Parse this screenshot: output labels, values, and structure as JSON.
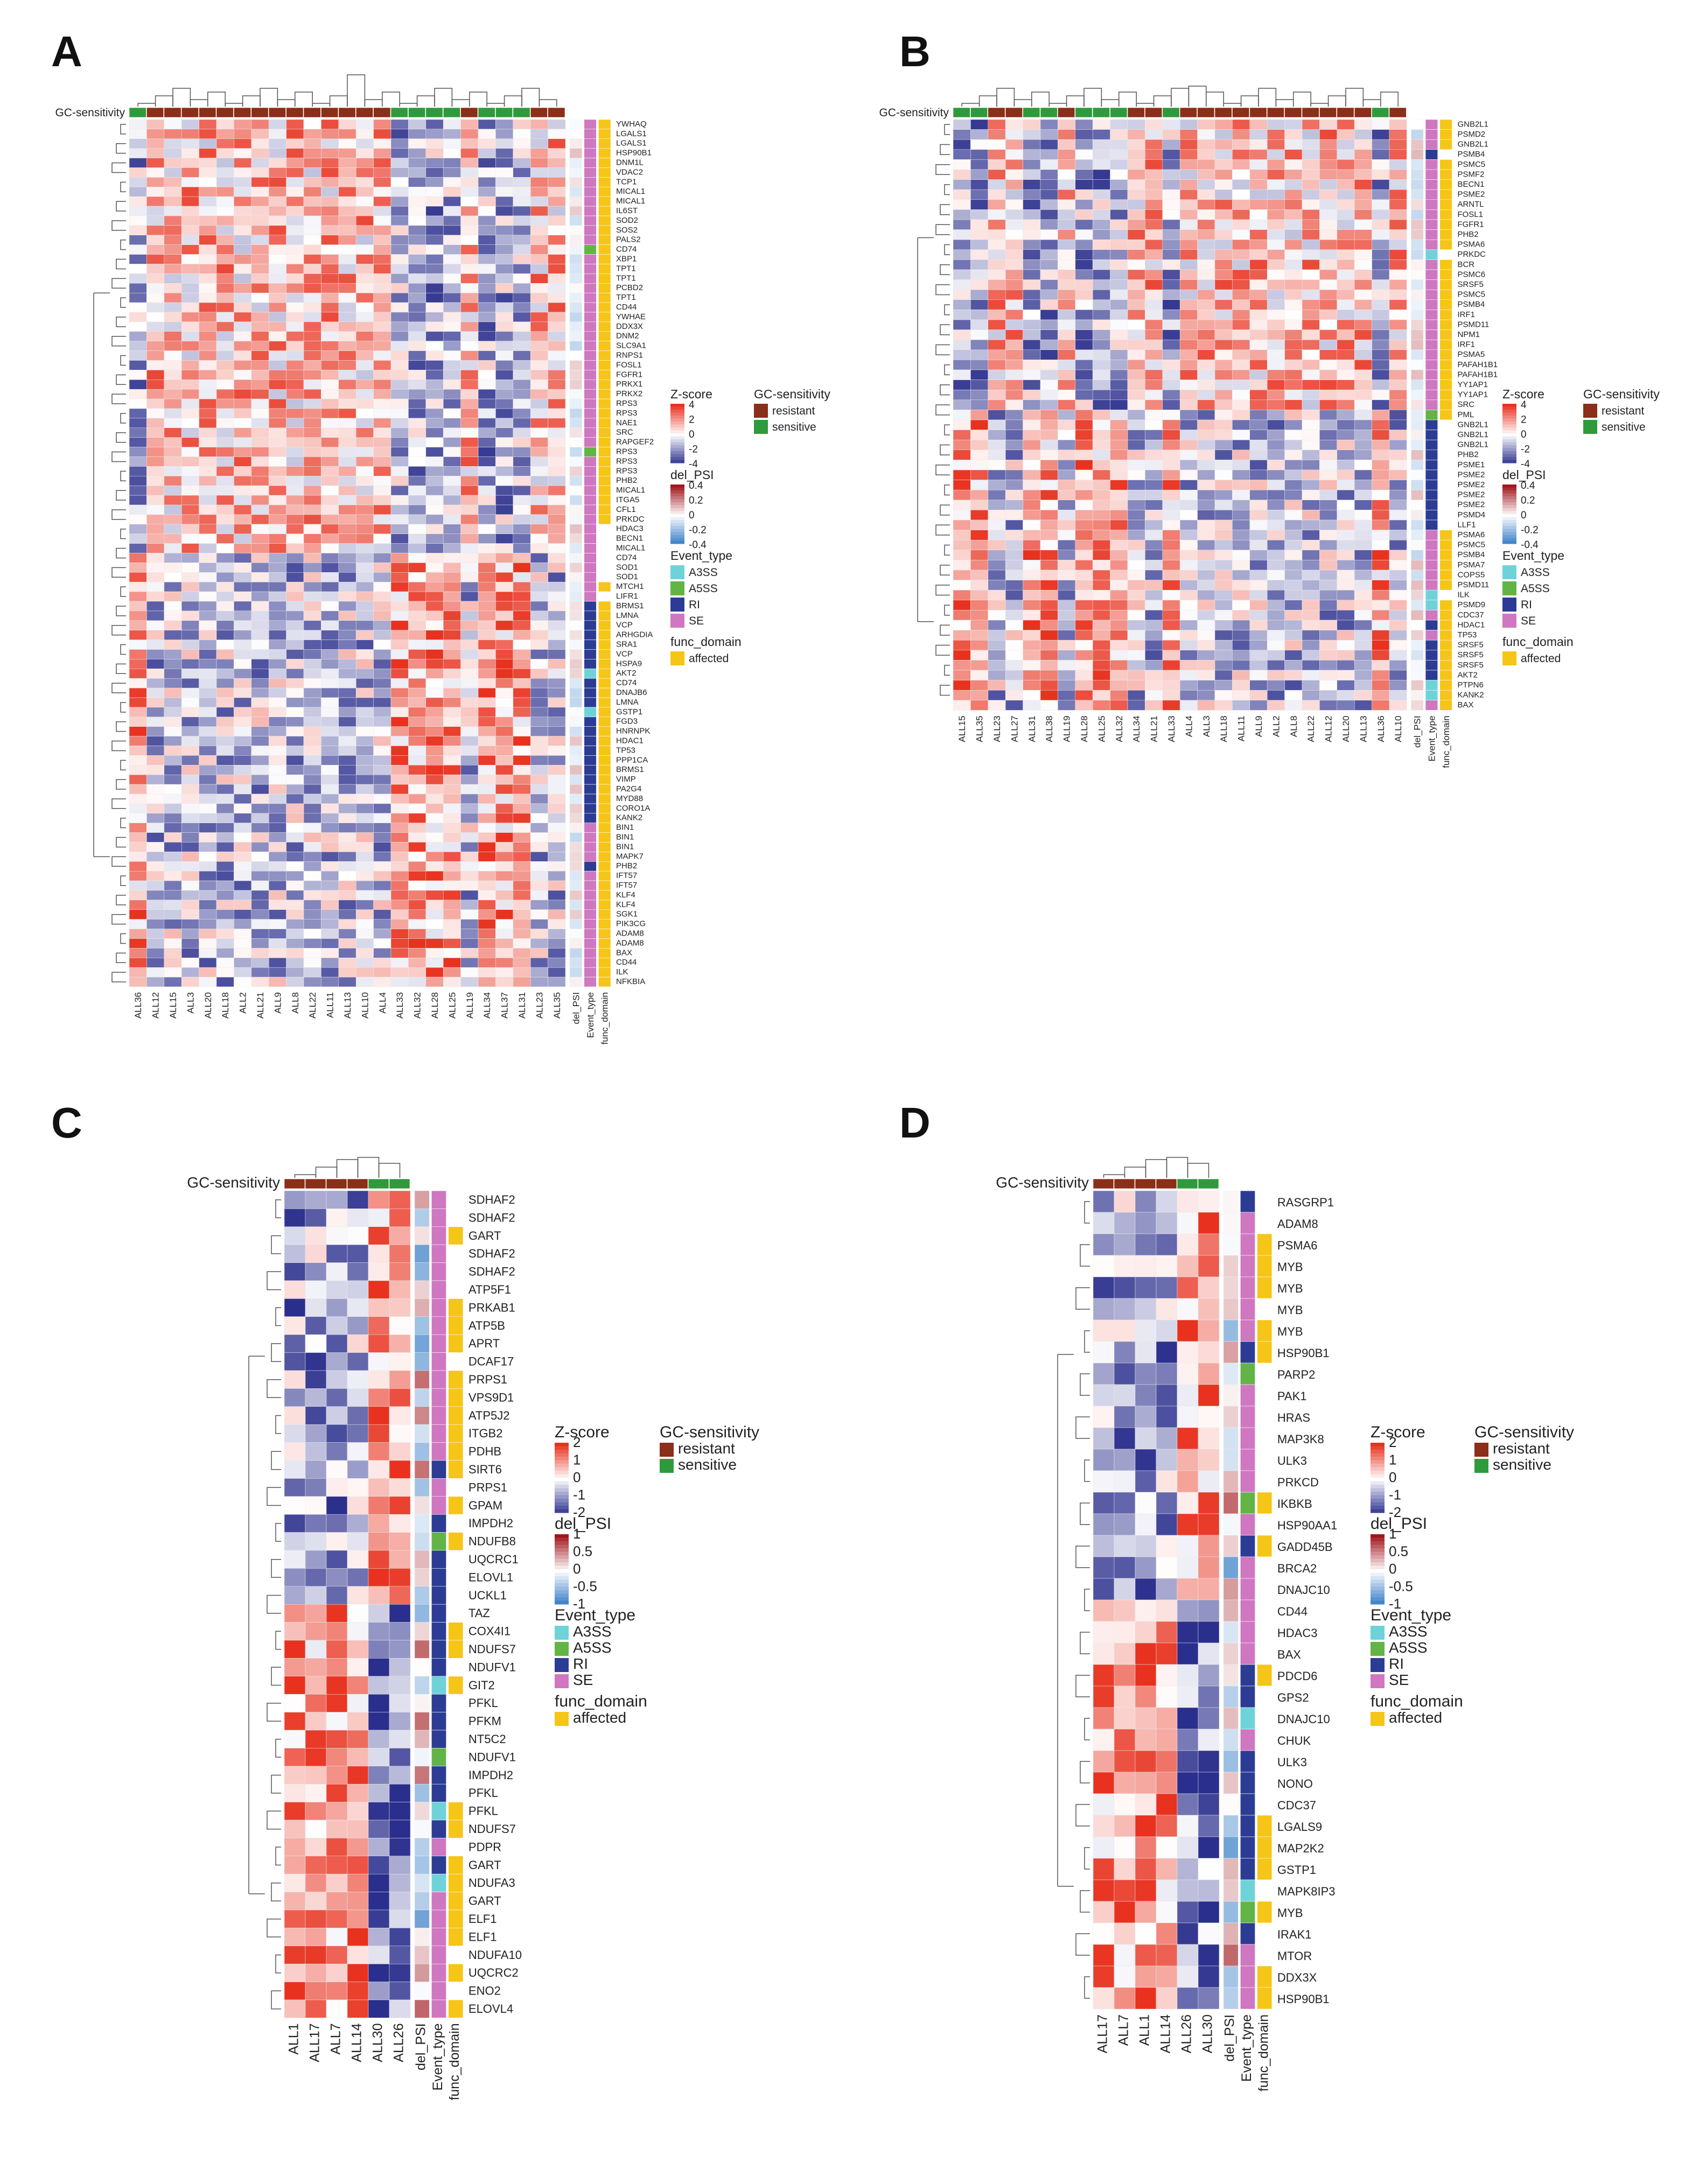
{
  "colors": {
    "resistant": "#8b2e1a",
    "sensitive": "#2f9a3c",
    "zscore_high": "#e8321f",
    "zscore_mid": "#ffffff",
    "zscore_low": "#2a2e8c",
    "delpsi_high": "#a0171c",
    "delpsi_low": "#2f78c4",
    "A3SS": "#6ed3d8",
    "A5SS": "#62b446",
    "RI": "#2c3c94",
    "SE": "#cf77c0",
    "affected": "#f5c518"
  },
  "legend": {
    "zscore_title": "Z-score",
    "delpsi_title": "del_PSI",
    "event_title": "Event_type",
    "func_title": "func_domain",
    "gc_title": "GC-sensitivity",
    "gc_items": [
      "resistant",
      "sensitive"
    ],
    "event_items": [
      "A3SS",
      "A5SS",
      "RI",
      "SE"
    ],
    "func_items": [
      "affected"
    ]
  },
  "chart_data": [
    {
      "panel": "A",
      "type": "heatmap",
      "row_label": "GC-sensitivity",
      "extra_columns": [
        "del_PSI",
        "Event_type",
        "func_domain"
      ],
      "zscore_ticks": [
        "4",
        "2",
        "0",
        "-2",
        "-4"
      ],
      "delpsi_ticks": [
        "0.4",
        "0.2",
        "0",
        "-0.2",
        "-0.4"
      ],
      "samples": [
        "ALL36",
        "ALL12",
        "ALL15",
        "ALL3",
        "ALL20",
        "ALL18",
        "ALL2",
        "ALL21",
        "ALL9",
        "ALL8",
        "ALL22",
        "ALL11",
        "ALL13",
        "ALL10",
        "ALL4",
        "ALL33",
        "ALL32",
        "ALL28",
        "ALL25",
        "ALL19",
        "ALL34",
        "ALL37",
        "ALL31",
        "ALL23",
        "ALL35"
      ],
      "gc_sensitivity": [
        "sensitive",
        "resistant",
        "resistant",
        "resistant",
        "resistant",
        "resistant",
        "resistant",
        "resistant",
        "resistant",
        "resistant",
        "resistant",
        "resistant",
        "resistant",
        "resistant",
        "resistant",
        "sensitive",
        "sensitive",
        "sensitive",
        "sensitive",
        "resistant",
        "sensitive",
        "sensitive",
        "sensitive",
        "resistant",
        "resistant"
      ],
      "genes": [
        "YWHAQ",
        "LGALS1",
        "LGALS1",
        "HSP90B1",
        "DNM1L",
        "VDAC2",
        "TCP1",
        "MICAL1",
        "MICAL1",
        "IL6ST",
        "SOD2",
        "SOS2",
        "PALS2",
        "CD74",
        "XBP1",
        "TPT1",
        "TPT1",
        "PCBD2",
        "TPT1",
        "CD44",
        "YWHAE",
        "DDX3X",
        "DNM2",
        "SLC9A1",
        "RNPS1",
        "FOSL1",
        "FGFR1",
        "PRKX1",
        "PRKX2",
        "RPS3",
        "RPS3",
        "NAE1",
        "SRC",
        "RAPGEF2",
        "RPS3",
        "RPS3",
        "RPS3",
        "PHB2",
        "MICAL1",
        "ITGA5",
        "CFL1",
        "PRKDC",
        "HDAC3",
        "BECN1",
        "MICAL1",
        "CD74",
        "SOD1",
        "SOD1",
        "MTCH1",
        "LIFR1",
        "BRMS1",
        "LMNA",
        "VCP",
        "ARHGDIA",
        "SRA1",
        "VCP",
        "HSPA9",
        "AKT2",
        "CD74",
        "DNAJB6",
        "LMNA",
        "GSTP1",
        "FGD3",
        "HNRNPK",
        "HDAC1",
        "TP53",
        "PPP1CA",
        "BRMS1",
        "VIMP",
        "PA2G4",
        "MYD88",
        "CORO1A",
        "KANK2",
        "BIN1",
        "BIN1",
        "BIN1",
        "MAPK7",
        "PHB2",
        "IFT57",
        "IFT57",
        "KLF4",
        "KLF4",
        "SGK1",
        "PIK3CG",
        "ADAM8",
        "ADAM8",
        "BAX",
        "CD44",
        "ILK",
        "NFKBIA"
      ],
      "event_type": [
        "SE",
        "SE",
        "SE",
        "SE",
        "SE",
        "SE",
        "SE",
        "SE",
        "SE",
        "SE",
        "SE",
        "SE",
        "SE",
        "A5SS",
        "SE",
        "SE",
        "SE",
        "SE",
        "SE",
        "SE",
        "SE",
        "SE",
        "SE",
        "SE",
        "SE",
        "SE",
        "SE",
        "SE",
        "SE",
        "SE",
        "SE",
        "SE",
        "SE",
        "SE",
        "A5SS",
        "SE",
        "SE",
        "SE",
        "SE",
        "SE",
        "SE",
        "SE",
        "SE",
        "SE",
        "SE",
        "SE",
        "SE",
        "SE",
        "SE",
        "SE",
        "RI",
        "RI",
        "RI",
        "RI",
        "RI",
        "RI",
        "RI",
        "A3SS",
        "RI",
        "RI",
        "RI",
        "A3SS",
        "RI",
        "RI",
        "RI",
        "RI",
        "RI",
        "RI",
        "RI",
        "RI",
        "RI",
        "RI",
        "RI",
        "SE",
        "SE",
        "SE",
        "SE",
        "RI",
        "SE",
        "SE",
        "SE",
        "SE",
        "SE",
        "SE",
        "SE",
        "SE",
        "SE",
        "SE",
        "SE",
        "SE"
      ],
      "func_affected": [
        true,
        true,
        true,
        true,
        true,
        true,
        true,
        true,
        true,
        true,
        true,
        true,
        true,
        true,
        true,
        true,
        true,
        true,
        true,
        true,
        true,
        true,
        true,
        true,
        true,
        true,
        true,
        true,
        true,
        true,
        true,
        true,
        true,
        true,
        true,
        true,
        true,
        true,
        true,
        true,
        true,
        true,
        false,
        false,
        false,
        false,
        false,
        false,
        true,
        false,
        true,
        true,
        true,
        true,
        true,
        true,
        true,
        true,
        true,
        true,
        true,
        true,
        true,
        true,
        true,
        true,
        true,
        true,
        true,
        true,
        true,
        true,
        true,
        true,
        true,
        true,
        true,
        true,
        true,
        true,
        true,
        true,
        true,
        true,
        true,
        true,
        true,
        true,
        true,
        true
      ]
    },
    {
      "panel": "B",
      "type": "heatmap",
      "row_label": "GC-sensitivity",
      "extra_columns": [
        "del_PSI",
        "Event_type",
        "func_domain"
      ],
      "zscore_ticks": [
        "4",
        "2",
        "0",
        "-2",
        "-4"
      ],
      "delpsi_ticks": [
        "0.4",
        "0.2",
        "0",
        "-0.2",
        "-0.4"
      ],
      "samples": [
        "ALL15",
        "ALL35",
        "ALL23",
        "ALL27",
        "ALL31",
        "ALL38",
        "ALL19",
        "ALL28",
        "ALL25",
        "ALL32",
        "ALL34",
        "ALL21",
        "ALL33",
        "ALL4",
        "ALL3",
        "ALL18",
        "ALL11",
        "ALL9",
        "ALL2",
        "ALL8",
        "ALL22",
        "ALL12",
        "ALL20",
        "ALL13",
        "ALL36",
        "ALL10"
      ],
      "gc_sensitivity": [
        "sensitive",
        "sensitive",
        "resistant",
        "resistant",
        "sensitive",
        "sensitive",
        "resistant",
        "sensitive",
        "sensitive",
        "sensitive",
        "resistant",
        "resistant",
        "sensitive",
        "resistant",
        "resistant",
        "resistant",
        "resistant",
        "resistant",
        "resistant",
        "resistant",
        "resistant",
        "resistant",
        "resistant",
        "resistant",
        "sensitive",
        "resistant"
      ],
      "genes": [
        "GNB2L1",
        "PSMD2",
        "GNB2L1",
        "PSMB4",
        "PSMC5",
        "PSMF2",
        "BECN1",
        "PSME2",
        "ARNTL",
        "FOSL1",
        "FGFR1",
        "PHB2",
        "PSMA6",
        "PRKDC",
        "BCR",
        "PSMC6",
        "SRSF5",
        "PSMC5",
        "PSMB4",
        "IRF1",
        "PSMD11",
        "NPM1",
        "IRF1",
        "PSMA5",
        "PAFAH1B1",
        "PAFAH1B1",
        "YY1AP1",
        "YY1AP1",
        "SRC",
        "PML",
        "GNB2L1",
        "GNB2L1",
        "GNB2L1",
        "PHB2",
        "PSME1",
        "PSME2",
        "PSME2",
        "PSME2",
        "PSME2",
        "PSMD4",
        "LLF1",
        "PSMA6",
        "PSMC5",
        "PSMB4",
        "PSMA7",
        "COPS5",
        "PSMD11",
        "ILK",
        "PSMD9",
        "CDC37",
        "HDAC1",
        "TP53",
        "SRSF5",
        "SRSF5",
        "SRSF5",
        "AKT2",
        "PTPN6",
        "KANK2",
        "BAX"
      ],
      "event_type": [
        "SE",
        "SE",
        "SE",
        "RI",
        "SE",
        "SE",
        "SE",
        "SE",
        "SE",
        "SE",
        "SE",
        "SE",
        "SE",
        "A3SS",
        "SE",
        "SE",
        "SE",
        "SE",
        "SE",
        "SE",
        "SE",
        "SE",
        "SE",
        "SE",
        "SE",
        "SE",
        "SE",
        "SE",
        "SE",
        "A5SS",
        "RI",
        "RI",
        "RI",
        "RI",
        "RI",
        "RI",
        "RI",
        "RI",
        "RI",
        "RI",
        "RI",
        "SE",
        "SE",
        "SE",
        "SE",
        "SE",
        "SE",
        "A3SS",
        "A3SS",
        "SE",
        "RI",
        "SE",
        "RI",
        "RI",
        "RI",
        "RI",
        "A3SS",
        "A3SS",
        "SE"
      ],
      "func_affected": [
        true,
        true,
        true,
        false,
        true,
        true,
        true,
        true,
        true,
        true,
        true,
        true,
        true,
        false,
        true,
        true,
        true,
        true,
        true,
        true,
        true,
        true,
        true,
        true,
        true,
        true,
        true,
        true,
        true,
        true,
        false,
        false,
        false,
        false,
        false,
        false,
        false,
        false,
        false,
        false,
        false,
        true,
        true,
        true,
        true,
        true,
        true,
        false,
        true,
        true,
        true,
        true,
        true,
        true,
        true,
        true,
        true,
        true,
        true
      ]
    },
    {
      "panel": "C",
      "type": "heatmap",
      "row_label": "GC-sensitivity",
      "extra_columns": [
        "del_PSI",
        "Event_type",
        "func_domain"
      ],
      "zscore_ticks": [
        "2",
        "1",
        "0",
        "-1",
        "-2"
      ],
      "delpsi_ticks": [
        "1",
        "0.5",
        "0",
        "-0.5",
        "-1"
      ],
      "samples": [
        "ALL1",
        "ALL17",
        "ALL7",
        "ALL14",
        "ALL30",
        "ALL26"
      ],
      "gc_sensitivity": [
        "resistant",
        "resistant",
        "resistant",
        "resistant",
        "sensitive",
        "sensitive"
      ],
      "genes": [
        "SDHAF2",
        "SDHAF2",
        "GART",
        "SDHAF2",
        "SDHAF2",
        "ATP5F1",
        "PRKAB1",
        "ATP5B",
        "APRT",
        "DCAF17",
        "PRPS1",
        "VPS9D1",
        "ATP5J2",
        "ITGB2",
        "PDHB",
        "SIRT6",
        "PRPS1",
        "GPAM",
        "IMPDH2",
        "NDUFB8",
        "UQCRC1",
        "ELOVL1",
        "UCKL1",
        "TAZ",
        "COX4I1",
        "NDUFS7",
        "NDUFV1",
        "GIT2",
        "PFKL",
        "PFKM",
        "NT5C2",
        "NDUFV1",
        "IMPDH2",
        "PFKL",
        "PFKL",
        "NDUFS7",
        "PDPR",
        "GART",
        "NDUFA3",
        "GART",
        "ELF1",
        "ELF1",
        "NDUFA10",
        "UQCRC2",
        "ENO2",
        "ELOVL4"
      ],
      "event_type": [
        "SE",
        "SE",
        "SE",
        "SE",
        "SE",
        "SE",
        "SE",
        "SE",
        "SE",
        "SE",
        "SE",
        "SE",
        "SE",
        "SE",
        "SE",
        "RI",
        "SE",
        "SE",
        "RI",
        "A5SS",
        "RI",
        "RI",
        "RI",
        "RI",
        "RI",
        "RI",
        "RI",
        "A3SS",
        "RI",
        "RI",
        "RI",
        "A5SS",
        "RI",
        "RI",
        "A3SS",
        "RI",
        "SE",
        "RI",
        "A3SS",
        "SE",
        "SE",
        "SE",
        "SE",
        "SE",
        "SE",
        "SE"
      ],
      "func_affected": [
        false,
        false,
        true,
        false,
        false,
        false,
        true,
        true,
        true,
        false,
        true,
        true,
        true,
        true,
        true,
        true,
        false,
        true,
        false,
        true,
        false,
        false,
        false,
        false,
        true,
        true,
        false,
        true,
        false,
        false,
        false,
        false,
        false,
        false,
        true,
        true,
        false,
        true,
        true,
        true,
        true,
        true,
        false,
        true,
        false,
        true
      ]
    },
    {
      "panel": "D",
      "type": "heatmap",
      "row_label": "GC-sensitivity",
      "extra_columns": [
        "del_PSI",
        "Event_type",
        "func_domain"
      ],
      "zscore_ticks": [
        "2",
        "1",
        "0",
        "-1",
        "-2"
      ],
      "delpsi_ticks": [
        "1",
        "0.5",
        "0",
        "-0.5",
        "-1"
      ],
      "samples": [
        "ALL17",
        "ALL7",
        "ALL1",
        "ALL14",
        "ALL26",
        "ALL30"
      ],
      "gc_sensitivity": [
        "resistant",
        "resistant",
        "resistant",
        "resistant",
        "sensitive",
        "sensitive"
      ],
      "genes": [
        "RASGRP1",
        "ADAM8",
        "PSMA6",
        "MYB",
        "MYB",
        "MYB",
        "MYB",
        "HSP90B1",
        "PARP2",
        "PAK1",
        "HRAS",
        "MAP3K8",
        "ULK3",
        "PRKCD",
        "IKBKB",
        "HSP90AA1",
        "GADD45B",
        "BRCA2",
        "DNAJC10",
        "CD44",
        "HDAC3",
        "BAX",
        "PDCD6",
        "GPS2",
        "DNAJC10",
        "CHUK",
        "ULK3",
        "NONO",
        "CDC37",
        "LGALS9",
        "MAP2K2",
        "GSTP1",
        "MAPK8IP3",
        "MYB",
        "IRAK1",
        "MTOR",
        "DDX3X",
        "HSP90B1"
      ],
      "event_type": [
        "RI",
        "SE",
        "SE",
        "SE",
        "SE",
        "SE",
        "SE",
        "RI",
        "A5SS",
        "SE",
        "SE",
        "SE",
        "SE",
        "SE",
        "A5SS",
        "SE",
        "RI",
        "SE",
        "SE",
        "SE",
        "SE",
        "SE",
        "RI",
        "RI",
        "A3SS",
        "SE",
        "RI",
        "RI",
        "RI",
        "RI",
        "RI",
        "RI",
        "A3SS",
        "A5SS",
        "RI",
        "SE",
        "SE",
        "SE"
      ],
      "func_affected": [
        false,
        false,
        true,
        true,
        true,
        false,
        true,
        true,
        false,
        false,
        false,
        false,
        false,
        false,
        true,
        false,
        true,
        false,
        false,
        false,
        false,
        false,
        true,
        false,
        false,
        false,
        false,
        false,
        false,
        true,
        true,
        true,
        false,
        true,
        false,
        false,
        true,
        true
      ]
    }
  ]
}
